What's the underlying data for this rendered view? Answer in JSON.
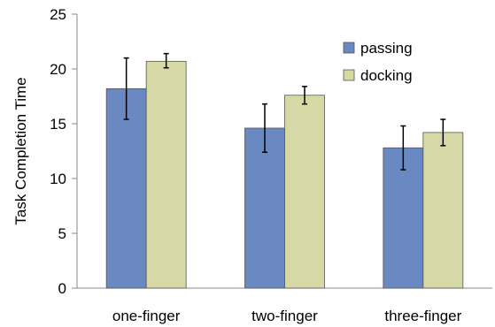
{
  "chart_data": {
    "type": "bar",
    "title": "",
    "xlabel": "",
    "ylabel": "Task Completion Time",
    "ylim": [
      0,
      25
    ],
    "yticks": [
      0,
      5,
      10,
      15,
      20,
      25
    ],
    "categories": [
      "one-finger",
      "two-finger",
      "three-finger"
    ],
    "series": [
      {
        "name": "passing",
        "color": "#6A88C1",
        "values": [
          18.2,
          14.6,
          12.8
        ],
        "error_low": [
          15.4,
          12.4,
          10.8
        ],
        "error_high": [
          21.0,
          16.8,
          14.8
        ]
      },
      {
        "name": "docking",
        "color": "#D6D8A6",
        "values": [
          20.7,
          17.6,
          14.2
        ],
        "error_low": [
          20.1,
          16.8,
          13.0
        ],
        "error_high": [
          21.4,
          18.4,
          15.4
        ]
      }
    ],
    "grid": false,
    "legend_position": "top-right"
  }
}
